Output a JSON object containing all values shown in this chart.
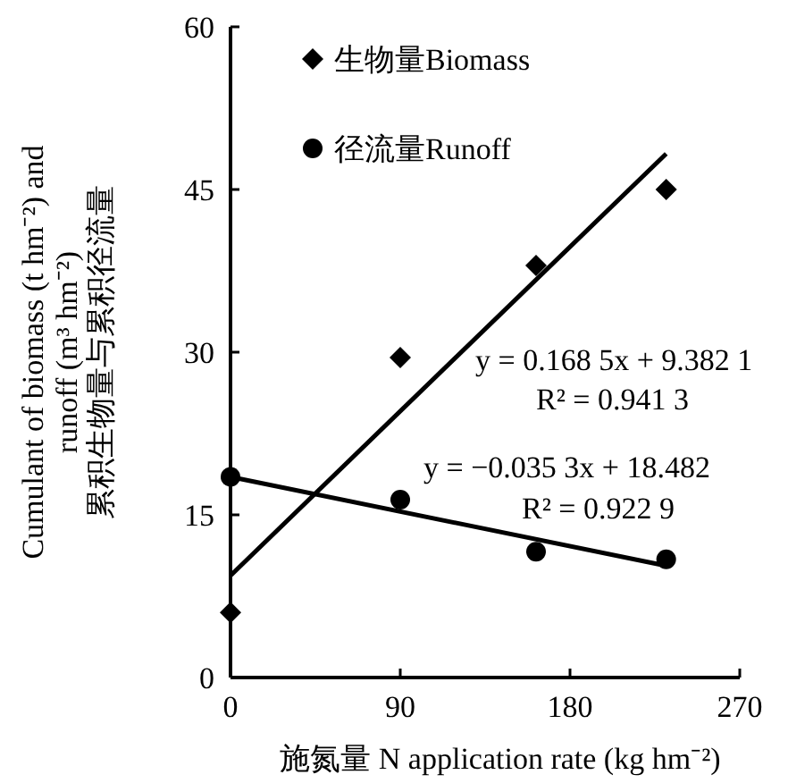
{
  "chart_data": {
    "type": "scatter",
    "xlabel": "施氮量 N application rate (kg hm⁻²)",
    "ylabel": "Cumulant of biomass (t hm⁻²) and\nrunoff (m³ hm⁻²)\n累积生物量与累积径流量",
    "xlim": [
      0,
      270
    ],
    "xticks": [
      0,
      90,
      180,
      270
    ],
    "ylim": [
      0,
      60
    ],
    "yticks": [
      0,
      15,
      30,
      45,
      60
    ],
    "legend": "top left",
    "grid": false,
    "series": [
      {
        "name": "生物量Biomass",
        "color": "#000000",
        "marker": "diamond",
        "x": [
          0,
          90,
          162,
          231
        ],
        "values": [
          6,
          29.5,
          38,
          45
        ]
      },
      {
        "name": "径流量Runoff",
        "color": "#000000",
        "marker": "circle",
        "x": [
          0,
          90,
          162,
          231
        ],
        "values": [
          18.5,
          16.4,
          11.6,
          10.9
        ]
      },
      {
        "type": "line",
        "color": "#000000",
        "x": [
          0,
          231
        ],
        "values": [
          9.4,
          48.3
        ]
      },
      {
        "type": "line",
        "color": "#000000",
        "x": [
          0,
          231
        ],
        "values": [
          18.5,
          10.3
        ]
      }
    ],
    "annotations": [
      "y = 0.168 5x + 9.382 1",
      "R² = 0.941 3",
      "y = −0.035 3x + 18.482",
      "R² = 0.922 9"
    ]
  }
}
